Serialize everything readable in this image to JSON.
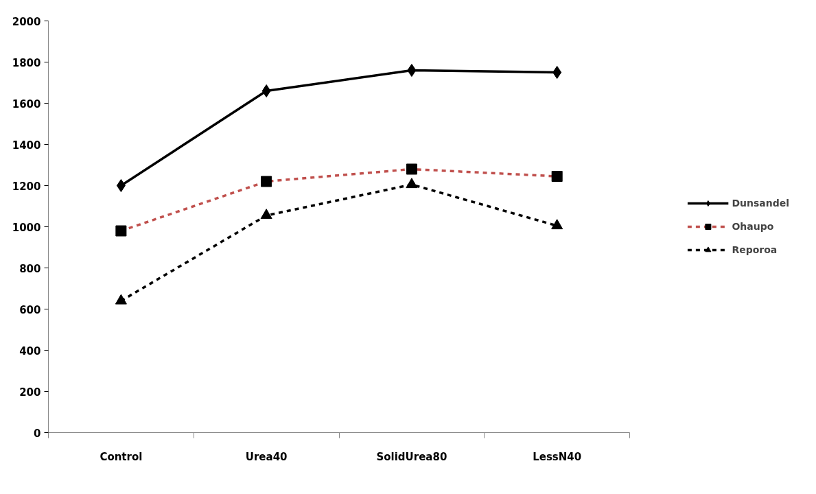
{
  "chart_data": {
    "type": "line",
    "categories": [
      "Control",
      "Urea40",
      "SolidUrea80",
      "LessN40"
    ],
    "ylim": [
      0,
      2000
    ],
    "yticks": [
      0,
      200,
      400,
      600,
      800,
      1000,
      1200,
      1400,
      1600,
      1800,
      2000
    ],
    "grid": false,
    "legend": "right",
    "series": [
      {
        "name": "Dunsandel",
        "color": "#000000",
        "marker": "diamond",
        "line_style": "solid",
        "values": [
          1200,
          1660,
          1760,
          1750
        ]
      },
      {
        "name": "Ohaupo",
        "color": "#c0504d",
        "marker": "square",
        "line_style": "dashed",
        "values": [
          980,
          1220,
          1280,
          1245
        ]
      },
      {
        "name": "Reporoa",
        "color": "#000000",
        "marker": "triangle",
        "line_style": "dashed",
        "values": [
          640,
          1055,
          1205,
          1005
        ]
      }
    ]
  }
}
